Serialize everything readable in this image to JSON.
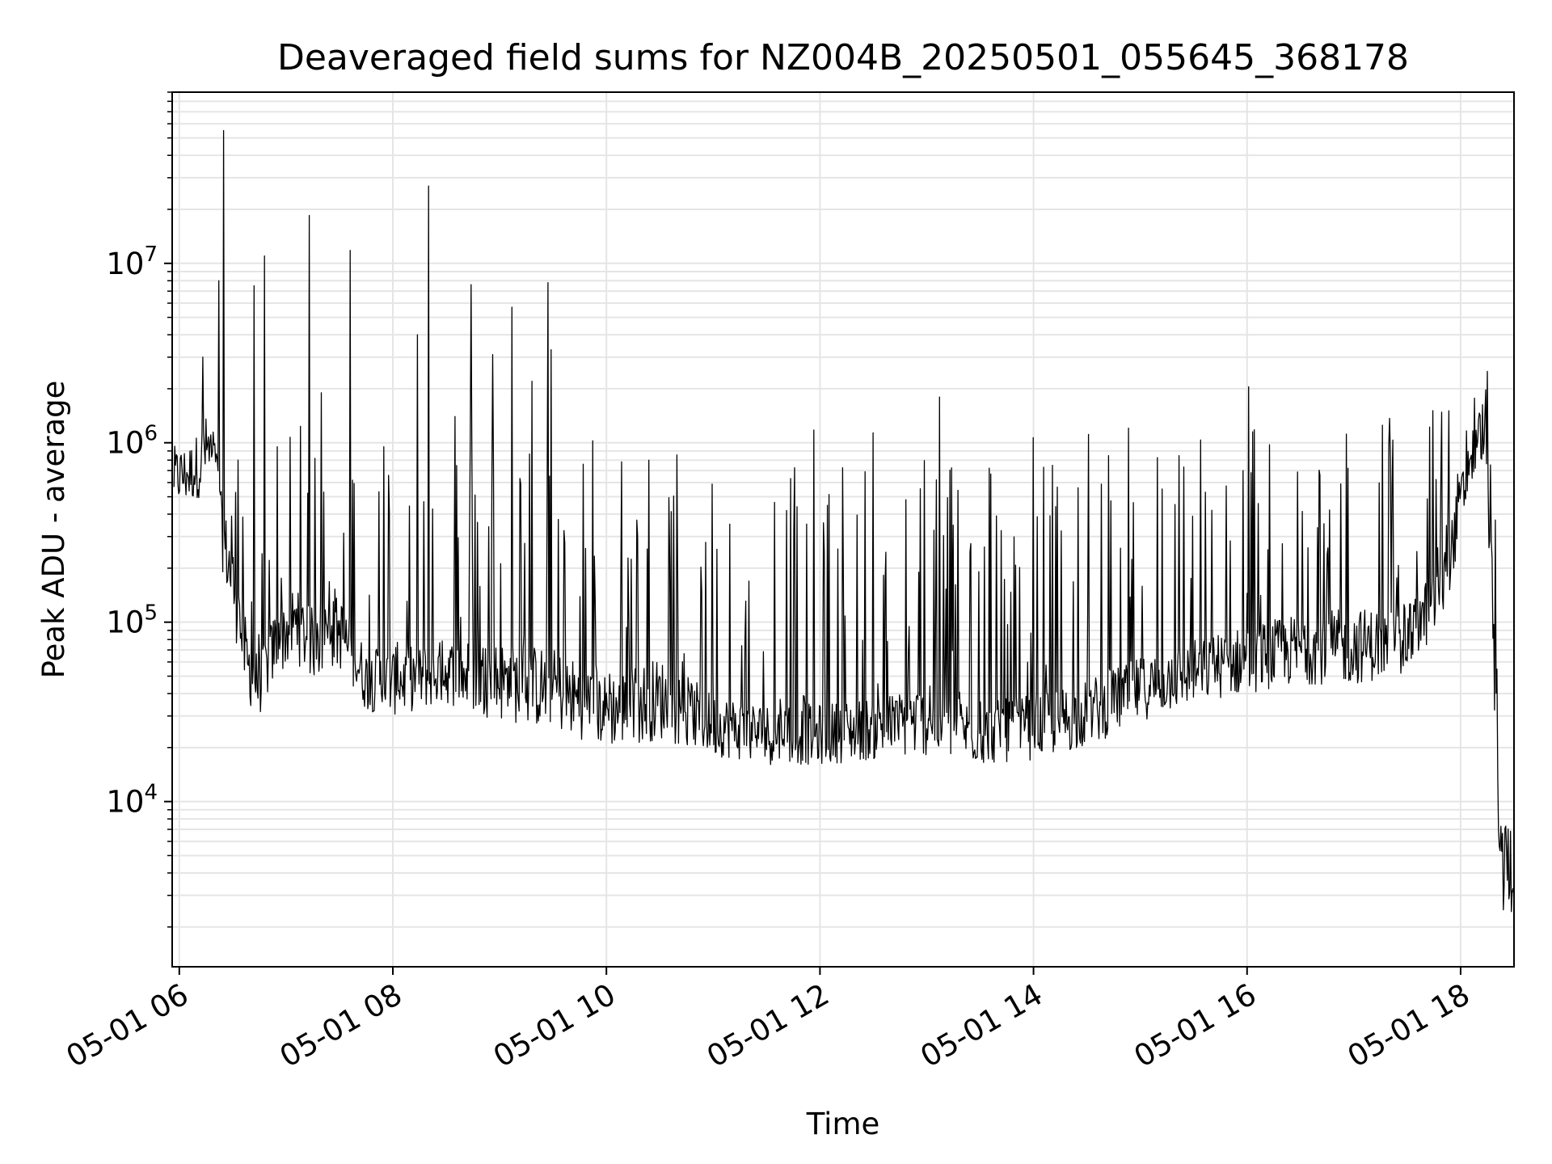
{
  "chart_data": {
    "type": "line",
    "title": "Deaveraged field sums for NZ004B_20250501_055645_368178",
    "xlabel": "Time",
    "ylabel": "Peak ADU - average",
    "yscale": "log",
    "grid": true,
    "legend": "none",
    "line_color": "#000000",
    "grid_color": "#e5e5e5",
    "x_range": [
      "2025-05-01 05:56",
      "2025-05-01 18:30"
    ],
    "ylim": [
      1200,
      90000000
    ],
    "x_ticks": [
      {
        "time": "2025-05-01 06:00",
        "label": "05-01 06"
      },
      {
        "time": "2025-05-01 08:00",
        "label": "05-01 08"
      },
      {
        "time": "2025-05-01 10:00",
        "label": "05-01 10"
      },
      {
        "time": "2025-05-01 12:00",
        "label": "05-01 12"
      },
      {
        "time": "2025-05-01 14:00",
        "label": "05-01 14"
      },
      {
        "time": "2025-05-01 16:00",
        "label": "05-01 16"
      },
      {
        "time": "2025-05-01 18:00",
        "label": "05-01 18"
      }
    ],
    "y_ticks": [
      {
        "value": 10000,
        "base": "10",
        "exp": "4"
      },
      {
        "value": 100000,
        "base": "10",
        "exp": "5"
      },
      {
        "value": 1000000,
        "base": "10",
        "exp": "6"
      },
      {
        "value": 10000000,
        "base": "10",
        "exp": "7"
      }
    ],
    "series": [
      {
        "x": [
          "2025-05-01 05:57",
          "2025-05-01 06:05",
          "2025-05-01 06:12",
          "2025-05-01 06:14",
          "2025-05-01 06:20",
          "2025-05-01 06:24",
          "2025-05-01 06:30",
          "2025-05-01 06:38",
          "2025-05-01 06:45",
          "2025-05-01 06:55",
          "2025-05-01 07:05",
          "2025-05-01 07:15",
          "2025-05-01 07:30",
          "2025-05-01 07:45",
          "2025-05-01 08:00",
          "2025-05-01 08:30",
          "2025-05-01 09:00",
          "2025-05-01 09:30",
          "2025-05-01 10:00",
          "2025-05-01 10:30",
          "2025-05-01 11:00",
          "2025-05-01 11:30",
          "2025-05-01 12:00",
          "2025-05-01 12:30",
          "2025-05-01 13:00",
          "2025-05-01 13:30",
          "2025-05-01 14:00",
          "2025-05-01 14:30",
          "2025-05-01 15:00",
          "2025-05-01 15:30",
          "2025-05-01 16:00",
          "2025-05-01 16:30",
          "2025-05-01 17:00",
          "2025-05-01 17:30",
          "2025-05-01 17:50",
          "2025-05-01 18:05",
          "2025-05-01 18:12",
          "2025-05-01 18:15",
          "2025-05-01 18:20",
          "2025-05-01 18:22",
          "2025-05-01 18:26",
          "2025-05-01 18:30"
        ],
        "baseline": [
          600000,
          600000,
          750000,
          900000,
          800000,
          300000,
          180000,
          60000,
          40000,
          80000,
          100000,
          75000,
          90000,
          45000,
          45000,
          50000,
          50000,
          45000,
          32000,
          40000,
          25000,
          22000,
          22000,
          24000,
          28000,
          22000,
          25000,
          30000,
          40000,
          50000,
          60000,
          70000,
          75000,
          75000,
          150000,
          700000,
          1100000,
          900000,
          30000,
          5000,
          5500,
          4000
        ],
        "peak": [
          900000,
          900000,
          1300000,
          1400000,
          1000000,
          900000,
          700000,
          400000,
          250000,
          700000,
          1300000,
          1300000,
          1000000,
          900000,
          1300000,
          1500000,
          1400000,
          1200000,
          1400000,
          1000000,
          1100000,
          1200000,
          1200000,
          1200000,
          1300000,
          1200000,
          1250000,
          1200000,
          1300000,
          1400000,
          1500000,
          1500000,
          1600000,
          1650000,
          1700000,
          1800000,
          2200000,
          2000000,
          1000000,
          8000,
          9000,
          7000
        ],
        "trough": [
          450000,
          450000,
          500000,
          600000,
          500000,
          200000,
          100000,
          35000,
          30000,
          50000,
          60000,
          48000,
          55000,
          32000,
          30000,
          35000,
          28000,
          25000,
          20000,
          22000,
          18000,
          16000,
          16000,
          17000,
          18000,
          16000,
          17000,
          20000,
          28000,
          35000,
          40000,
          45000,
          45000,
          50000,
          100000,
          500000,
          800000,
          500000,
          10000,
          2000,
          2500,
          2200
        ],
        "spikes": [
          {
            "x": "2025-05-01 06:13",
            "y": 3000000
          },
          {
            "x": "2025-05-01 06:22",
            "y": 8000000
          },
          {
            "x": "2025-05-01 06:25",
            "y": 55000000
          },
          {
            "x": "2025-05-01 06:33",
            "y": 800000
          },
          {
            "x": "2025-05-01 06:42",
            "y": 7500000
          },
          {
            "x": "2025-05-01 06:48",
            "y": 11000000
          },
          {
            "x": "2025-05-01 06:55",
            "y": 950000
          },
          {
            "x": "2025-05-01 07:13",
            "y": 18500000
          },
          {
            "x": "2025-05-01 07:20",
            "y": 1900000
          },
          {
            "x": "2025-05-01 07:36",
            "y": 11800000
          },
          {
            "x": "2025-05-01 07:55",
            "y": 950000
          },
          {
            "x": "2025-05-01 08:14",
            "y": 4000000
          },
          {
            "x": "2025-05-01 08:20",
            "y": 27000000
          },
          {
            "x": "2025-05-01 08:35",
            "y": 1400000
          },
          {
            "x": "2025-05-01 08:44",
            "y": 7600000
          },
          {
            "x": "2025-05-01 08:56",
            "y": 3100000
          },
          {
            "x": "2025-05-01 09:07",
            "y": 5700000
          },
          {
            "x": "2025-05-01 09:18",
            "y": 2200000
          },
          {
            "x": "2025-05-01 09:27",
            "y": 7800000
          },
          {
            "x": "2025-05-01 09:29",
            "y": 3300000
          },
          {
            "x": "2025-05-01 13:07",
            "y": 1800000
          },
          {
            "x": "2025-05-01 16:01",
            "y": 2050000
          },
          {
            "x": "2025-05-01 18:15",
            "y": 2500000
          }
        ]
      }
    ]
  }
}
